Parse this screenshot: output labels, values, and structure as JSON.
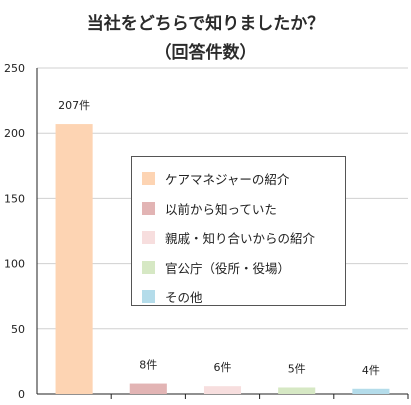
{
  "chart_data": {
    "type": "bar",
    "title_line1": "当社をどちらで知りましたか？",
    "title_line2": "（回答件数）",
    "categories": [
      "ケアマネジャーの紹介",
      "以前から知っていた",
      "親戚・知り合いからの紹介",
      "官公庁（役所・役場）",
      "その他"
    ],
    "values": [
      207,
      8,
      6,
      5,
      4
    ],
    "data_labels": [
      "207件",
      "8件",
      "6件",
      "5件",
      "4件"
    ],
    "colors": [
      "#fdd4b3",
      "#e2b4b4",
      "#f7dede",
      "#d6e8c4",
      "#b4dcea"
    ],
    "ylim": [
      0,
      250
    ],
    "yticks": [
      "0",
      "50",
      "100",
      "150",
      "200",
      "250"
    ],
    "grid": true,
    "legend_position": "center-right"
  }
}
